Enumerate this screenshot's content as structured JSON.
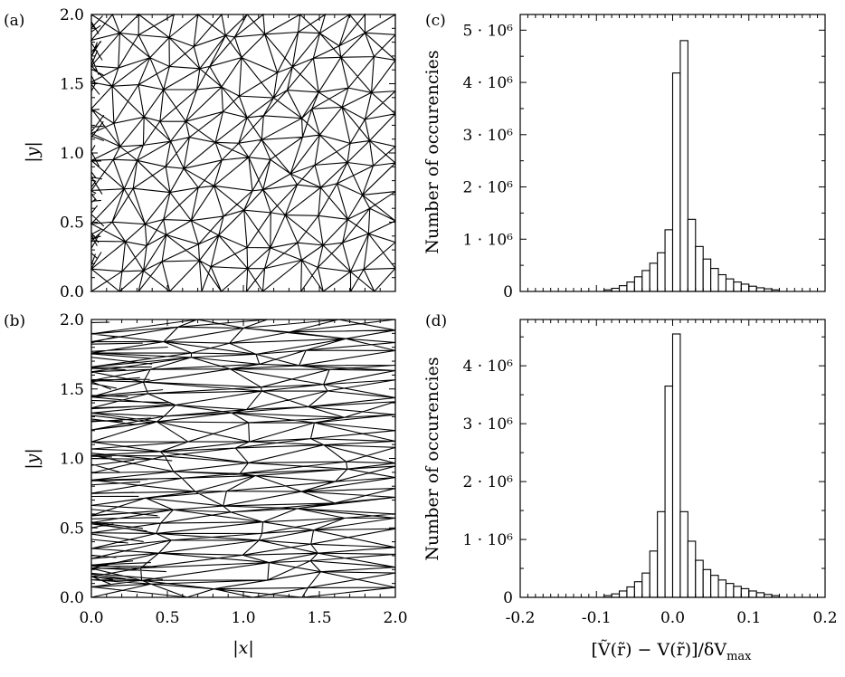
{
  "chart_data": [
    {
      "type": "mesh",
      "panel_label": "(a)",
      "ylabel": "|y|",
      "xlim": [
        0.0,
        2.0
      ],
      "ylim": [
        0.0,
        2.0
      ],
      "y_ticks": [
        "0.0",
        "0.5",
        "1.0",
        "1.5",
        "2.0"
      ],
      "x_tick_labels_shown": false
    },
    {
      "type": "mesh",
      "panel_label": "(b)",
      "xlabel": "|x|",
      "ylabel": "|y|",
      "xlim": [
        0.0,
        2.0
      ],
      "ylim": [
        0.0,
        2.0
      ],
      "x_ticks": [
        "0.0",
        "0.5",
        "1.0",
        "1.5",
        "2.0"
      ],
      "y_ticks": [
        "0.0",
        "0.5",
        "1.0",
        "1.5",
        "2.0"
      ]
    },
    {
      "type": "bar",
      "panel_label": "(c)",
      "ylabel": "Number of occurencies",
      "xlim": [
        -0.2,
        0.2
      ],
      "ylim": [
        0,
        5300000
      ],
      "bin_width": 0.01,
      "bin_centers": [
        -0.085,
        -0.075,
        -0.065,
        -0.055,
        -0.045,
        -0.035,
        -0.025,
        -0.015,
        -0.005,
        0.005,
        0.015,
        0.025,
        0.035,
        0.045,
        0.055,
        0.065,
        0.075,
        0.085,
        0.095,
        0.105,
        0.115,
        0.125,
        0.135
      ],
      "values": [
        30000,
        60000,
        110000,
        180000,
        280000,
        400000,
        540000,
        740000,
        1180000,
        4180000,
        4800000,
        1380000,
        860000,
        620000,
        440000,
        320000,
        240000,
        180000,
        140000,
        100000,
        70000,
        50000,
        30000
      ],
      "y_ticks": [
        {
          "value": 0,
          "label": "0"
        },
        {
          "value": 1000000,
          "label": "1 · 10⁶"
        },
        {
          "value": 2000000,
          "label": "2 · 10⁶"
        },
        {
          "value": 3000000,
          "label": "3 · 10⁶"
        },
        {
          "value": 4000000,
          "label": "4 · 10⁶"
        },
        {
          "value": 5000000,
          "label": "5 · 10⁶"
        }
      ],
      "x_tick_labels_shown": false
    },
    {
      "type": "bar",
      "panel_label": "(d)",
      "xlabel": "[Ṽ(r̃) − V(r̃)]/δV",
      "xlabel_subscript": "max",
      "ylabel": "Number of occurencies",
      "xlim": [
        -0.2,
        0.2
      ],
      "ylim": [
        0,
        4800000
      ],
      "bin_width": 0.01,
      "bin_centers": [
        -0.085,
        -0.075,
        -0.065,
        -0.055,
        -0.045,
        -0.035,
        -0.025,
        -0.015,
        -0.005,
        0.005,
        0.015,
        0.025,
        0.035,
        0.045,
        0.055,
        0.065,
        0.075,
        0.085,
        0.095,
        0.105,
        0.115,
        0.125,
        0.135
      ],
      "values": [
        30000,
        60000,
        110000,
        180000,
        270000,
        420000,
        800000,
        1480000,
        3650000,
        4550000,
        1480000,
        970000,
        640000,
        480000,
        380000,
        300000,
        240000,
        190000,
        150000,
        110000,
        80000,
        50000,
        30000
      ],
      "y_ticks": [
        {
          "value": 0,
          "label": "0"
        },
        {
          "value": 1000000,
          "label": "1 · 10⁶"
        },
        {
          "value": 2000000,
          "label": "2 · 10⁶"
        },
        {
          "value": 3000000,
          "label": "3 · 10⁶"
        },
        {
          "value": 4000000,
          "label": "4 · 10⁶"
        }
      ],
      "x_ticks": [
        "-0.2",
        "-0.1",
        "0.0",
        "0.1",
        "0.2"
      ]
    }
  ]
}
